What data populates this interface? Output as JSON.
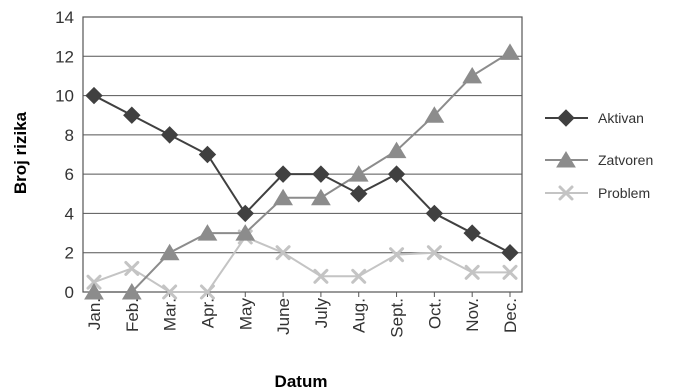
{
  "chart_data": {
    "type": "line",
    "title": "",
    "xlabel": "Datum",
    "ylabel": "Broj rizika",
    "categories": [
      "Jan.",
      "Feb.",
      "Mar.",
      "Apr.",
      "May",
      "June",
      "July",
      "Aug.",
      "Sept.",
      "Oct.",
      "Nov.",
      "Dec."
    ],
    "ylim": [
      0,
      14
    ],
    "yticks": [
      0,
      2,
      4,
      6,
      8,
      10,
      12,
      14
    ],
    "grid": "horizontal",
    "legend_position": "right",
    "series": [
      {
        "name": "Aktivan",
        "marker": "diamond",
        "color": "#404040",
        "values": [
          10,
          9,
          8,
          7,
          4,
          6,
          6,
          5,
          6,
          4,
          3,
          2
        ]
      },
      {
        "name": "Zatvoren",
        "marker": "triangle",
        "color": "#8c8c8c",
        "values": [
          0,
          0,
          2,
          3,
          3,
          4.8,
          4.8,
          6,
          7.2,
          9,
          11,
          12.2
        ]
      },
      {
        "name": "Problem",
        "marker": "x",
        "color": "#c4c4c4",
        "values": [
          0.5,
          1.2,
          0,
          0,
          2.8,
          2,
          0.8,
          0.8,
          1.9,
          2,
          1,
          1
        ]
      }
    ]
  }
}
